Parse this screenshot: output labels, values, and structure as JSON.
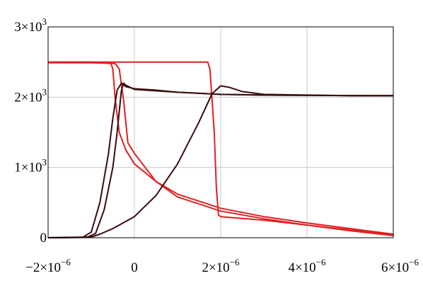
{
  "chart_data": {
    "type": "line",
    "title": "",
    "xlabel": "",
    "ylabel": "",
    "xlim": [
      -2e-06,
      6e-06
    ],
    "ylim": [
      0,
      3000
    ],
    "grid": true,
    "legend": "none",
    "x_ticks": [
      {
        "value": -2e-06,
        "label": "−2×10",
        "exp": "−6"
      },
      {
        "value": 0,
        "label": "0",
        "exp": ""
      },
      {
        "value": 2e-06,
        "label": "2×10",
        "exp": "−6"
      },
      {
        "value": 4e-06,
        "label": "4×10",
        "exp": "−6"
      },
      {
        "value": 6e-06,
        "label": "6×10",
        "exp": "−6"
      }
    ],
    "y_ticks": [
      {
        "value": 0,
        "label": "0",
        "exp": ""
      },
      {
        "value": 1000,
        "label": "1×10",
        "exp": "3"
      },
      {
        "value": 2000,
        "label": "2×10",
        "exp": "3"
      },
      {
        "value": 3000,
        "label": "3×10",
        "exp": "3"
      }
    ],
    "series": [
      {
        "color": "#e02020",
        "points": [
          [
            -2e-06,
            2500
          ],
          [
            -1e-06,
            2500
          ],
          [
            -5.5e-07,
            2490
          ],
          [
            -5e-07,
            2400
          ],
          [
            -4.5e-07,
            2000
          ],
          [
            -3.5e-07,
            1500
          ],
          [
            -2e-07,
            1250
          ],
          [
            0,
            1050
          ],
          [
            5e-07,
            800
          ],
          [
            1e-06,
            620
          ],
          [
            2e-06,
            420
          ],
          [
            3e-06,
            300
          ],
          [
            4e-06,
            210
          ],
          [
            5e-06,
            130
          ],
          [
            6e-06,
            50
          ]
        ]
      },
      {
        "color": "#e02020",
        "points": [
          [
            -2e-06,
            2500
          ],
          [
            -5e-07,
            2500
          ],
          [
            1.7e-06,
            2500
          ],
          [
            1.75e-06,
            2400
          ],
          [
            1.85e-06,
            1500
          ],
          [
            1.9e-06,
            700
          ],
          [
            1.95e-06,
            320
          ],
          [
            2e-06,
            300
          ],
          [
            3e-06,
            250
          ],
          [
            4e-06,
            180
          ],
          [
            5e-06,
            100
          ],
          [
            6e-06,
            30
          ]
        ]
      },
      {
        "color": "#e02020",
        "points": [
          [
            -2e-06,
            2490
          ],
          [
            -1e-06,
            2490
          ],
          [
            -4.5e-07,
            2480
          ],
          [
            -3.5e-07,
            2400
          ],
          [
            -2.5e-07,
            1950
          ],
          [
            -1.5e-07,
            1350
          ],
          [
            0,
            1200
          ],
          [
            5e-07,
            800
          ],
          [
            1e-06,
            580
          ],
          [
            2e-06,
            380
          ],
          [
            3e-06,
            270
          ],
          [
            4e-06,
            180
          ],
          [
            5e-06,
            110
          ],
          [
            6e-06,
            40
          ]
        ]
      },
      {
        "color": "#3a0c0c",
        "points": [
          [
            -2e-06,
            0
          ],
          [
            -1.2e-06,
            5
          ],
          [
            -1e-06,
            80
          ],
          [
            -8e-07,
            500
          ],
          [
            -6e-07,
            1200
          ],
          [
            -5e-07,
            1700
          ],
          [
            -4e-07,
            2100
          ],
          [
            -3e-07,
            2200
          ],
          [
            -2e-07,
            2150
          ],
          [
            0,
            2120
          ],
          [
            5e-07,
            2100
          ],
          [
            1e-06,
            2070
          ],
          [
            2e-06,
            2040
          ],
          [
            3e-06,
            2030
          ],
          [
            4e-06,
            2025
          ],
          [
            5e-06,
            2020
          ],
          [
            6e-06,
            2020
          ]
        ]
      },
      {
        "color": "#3a0c0c",
        "points": [
          [
            -2e-06,
            0
          ],
          [
            -1.1e-06,
            5
          ],
          [
            -9e-07,
            60
          ],
          [
            -7e-07,
            400
          ],
          [
            -5e-07,
            1000
          ],
          [
            -4e-07,
            1500
          ],
          [
            -3e-07,
            2100
          ],
          [
            -2.5e-07,
            2200
          ],
          [
            -2e-07,
            2170
          ],
          [
            0,
            2110
          ],
          [
            1e-06,
            2070
          ],
          [
            2e-06,
            2040
          ],
          [
            3e-06,
            2030
          ],
          [
            6e-06,
            2020
          ]
        ]
      },
      {
        "color": "#3a0c0c",
        "points": [
          [
            -2e-06,
            0
          ],
          [
            -1e-06,
            10
          ],
          [
            -8e-07,
            50
          ],
          [
            -5e-07,
            130
          ],
          [
            0,
            300
          ],
          [
            5e-07,
            600
          ],
          [
            1e-06,
            1050
          ],
          [
            1.5e-06,
            1650
          ],
          [
            1.8e-06,
            2050
          ],
          [
            2e-06,
            2160
          ],
          [
            2.2e-06,
            2140
          ],
          [
            2.5e-06,
            2080
          ],
          [
            3e-06,
            2040
          ],
          [
            4e-06,
            2030
          ],
          [
            5e-06,
            2020
          ],
          [
            6e-06,
            2020
          ]
        ]
      }
    ]
  }
}
